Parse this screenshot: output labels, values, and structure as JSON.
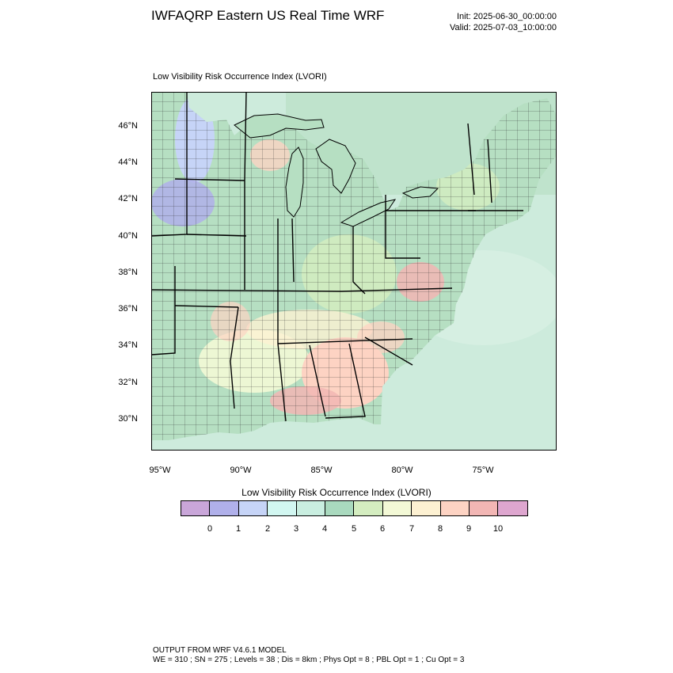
{
  "header": {
    "title": "IWFAQRP Eastern US Real Time WRF",
    "init": "Init: 2025-06-30_00:00:00",
    "valid": "Valid: 2025-07-03_10:00:00"
  },
  "plot_label": "Low Visibility Risk Occurrence Index   (LVORI)",
  "map": {
    "lat_labels": [
      "46°N",
      "44°N",
      "42°N",
      "40°N",
      "38°N",
      "36°N",
      "34°N",
      "32°N",
      "30°N"
    ],
    "lon_labels": [
      "95°W",
      "90°W",
      "85°W",
      "80°W",
      "75°W"
    ]
  },
  "colorbar": {
    "title": "Low Visibility Risk Occurrence Index  (LVORI)",
    "colors": [
      "#c9a6d9",
      "#b0b0ea",
      "#c6d4f7",
      "#d2f7f1",
      "#c9eee0",
      "#a9d9be",
      "#d4edc0",
      "#f3f9d6",
      "#fdf1d2",
      "#fdd3c3",
      "#f2b6b4",
      "#dea6cf"
    ],
    "ticks": [
      "0",
      "1",
      "2",
      "3",
      "4",
      "5",
      "6",
      "7",
      "8",
      "9",
      "10"
    ]
  },
  "footer": {
    "line1": "OUTPUT FROM WRF V4.6.1 MODEL",
    "line2": "WE = 310 ; SN = 275 ; Levels = 38 ; Dis = 8km ; Phys Opt = 8 ; PBL Opt = 1 ; Cu Opt = 3"
  }
}
